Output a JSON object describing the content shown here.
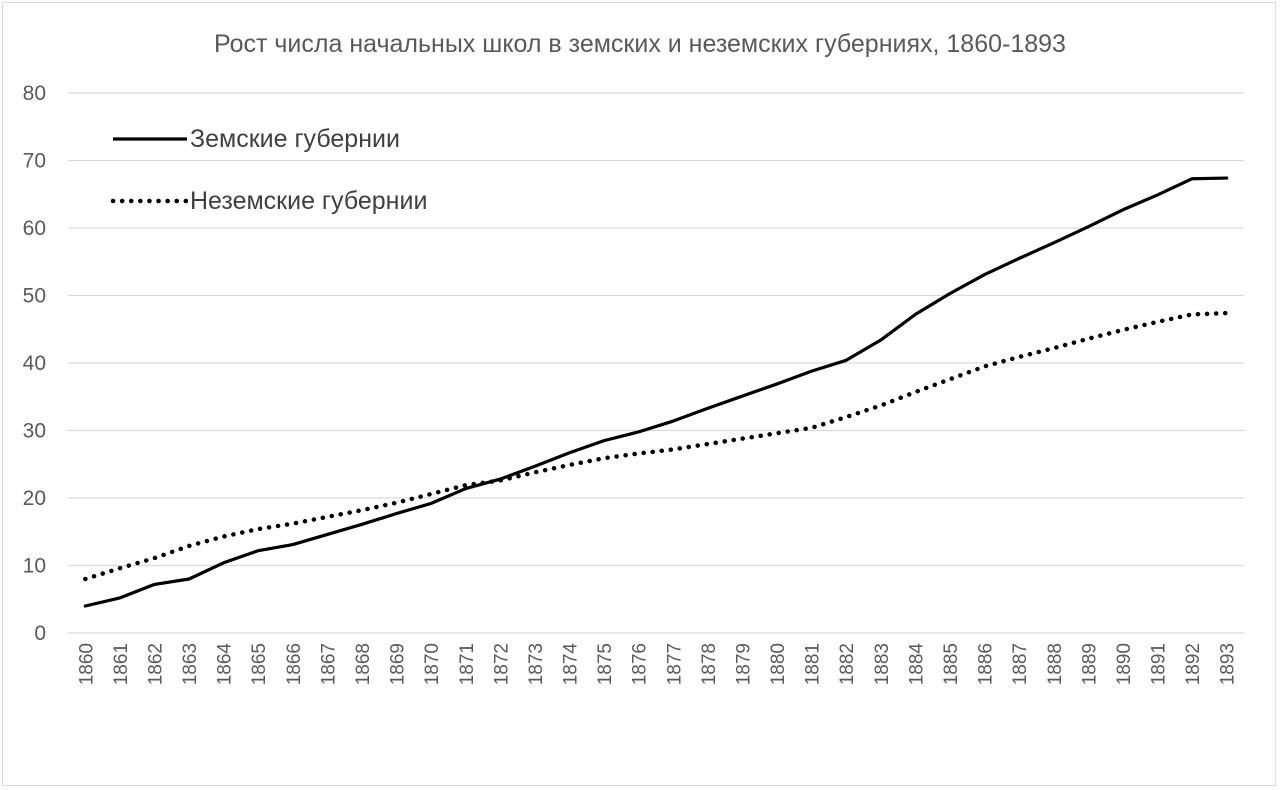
{
  "chart_data": {
    "type": "line",
    "title": "Рост числа начальных школ в земских и неземских губерниях, 1860-1893",
    "xlabel": "",
    "ylabel": "",
    "ylim": [
      0,
      80
    ],
    "yticks": [
      "0",
      "10",
      "20",
      "30",
      "40",
      "50",
      "60",
      "70",
      "80"
    ],
    "grid": true,
    "legend_position": "top-left",
    "categories": [
      "1860",
      "1861",
      "1862",
      "1863",
      "1864",
      "1865",
      "1866",
      "1867",
      "1868",
      "1869",
      "1870",
      "1871",
      "1872",
      "1873",
      "1874",
      "1875",
      "1876",
      "1877",
      "1878",
      "1879",
      "1880",
      "1881",
      "1882",
      "1883",
      "1884",
      "1885",
      "1886",
      "1887",
      "1888",
      "1889",
      "1890",
      "1891",
      "1892",
      "1893"
    ],
    "series": [
      {
        "name": "Земские губернии",
        "style": "solid",
        "color": "#000000",
        "values": [
          4.0,
          5.2,
          7.2,
          8.0,
          10.4,
          12.2,
          13.1,
          14.6,
          16.1,
          17.7,
          19.2,
          21.4,
          22.8,
          24.7,
          26.7,
          28.5,
          29.8,
          31.4,
          33.3,
          35.1,
          36.9,
          38.8,
          40.4,
          43.4,
          47.2,
          50.3,
          53.1,
          55.5,
          57.8,
          60.2,
          62.7,
          64.9,
          67.3,
          67.4
        ]
      },
      {
        "name": "Неземские губернии",
        "style": "dotted",
        "color": "#000000",
        "values": [
          8.0,
          9.6,
          11.1,
          12.9,
          14.3,
          15.4,
          16.2,
          17.2,
          18.2,
          19.3,
          20.6,
          21.9,
          22.6,
          23.8,
          24.9,
          25.9,
          26.6,
          27.2,
          28.0,
          28.8,
          29.6,
          30.4,
          32.0,
          33.7,
          35.7,
          37.6,
          39.5,
          40.9,
          42.2,
          43.6,
          44.9,
          46.1,
          47.2,
          47.4
        ]
      }
    ]
  }
}
